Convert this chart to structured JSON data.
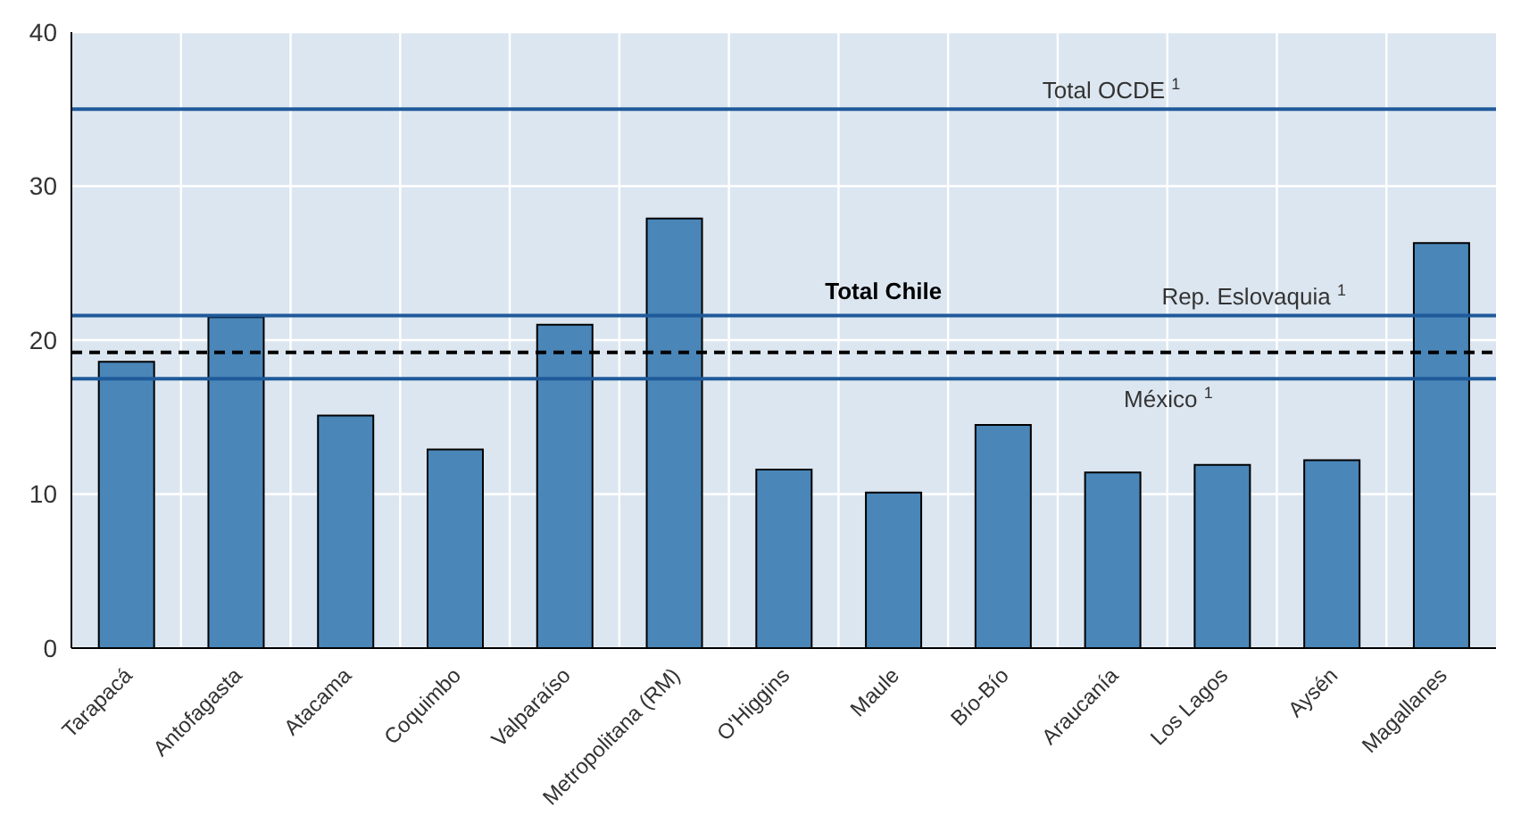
{
  "chart_data": {
    "type": "bar",
    "categories": [
      "Tarapacá",
      "Antofagasta",
      "Atacama",
      "Coquimbo",
      "Valparaíso",
      "Metropolitana (RM)",
      "O'Higgins",
      "Maule",
      "Bío-Bío",
      "Araucanía",
      "Los Lagos",
      "Aysén",
      "Magallanes"
    ],
    "values": [
      18.6,
      21.5,
      15.1,
      12.9,
      21.0,
      27.9,
      11.6,
      10.1,
      14.5,
      11.4,
      11.9,
      12.2,
      26.3
    ],
    "color": "#4a86b8",
    "ylim": [
      0,
      40
    ],
    "yticks": [
      0,
      10,
      20,
      30,
      40
    ],
    "grid": true,
    "ref_lines": [
      {
        "axis": "y",
        "value": 35.0,
        "label": "Total OCDE $^{1}$",
        "color": "#1f5a9a",
        "line_style": "solid"
      },
      {
        "axis": "y",
        "value": 21.6,
        "label": "Rep. Eslovaquia $^{1}$",
        "color": "#1f5a9a",
        "line_style": "solid"
      },
      {
        "axis": "y",
        "value": 19.2,
        "label": "Total Chile",
        "color": "#000000",
        "line_style": "dashed"
      },
      {
        "axis": "y",
        "value": 17.5,
        "label": "México $^{1}$",
        "color": "#1f5a9a",
        "line_style": "solid"
      }
    ]
  }
}
